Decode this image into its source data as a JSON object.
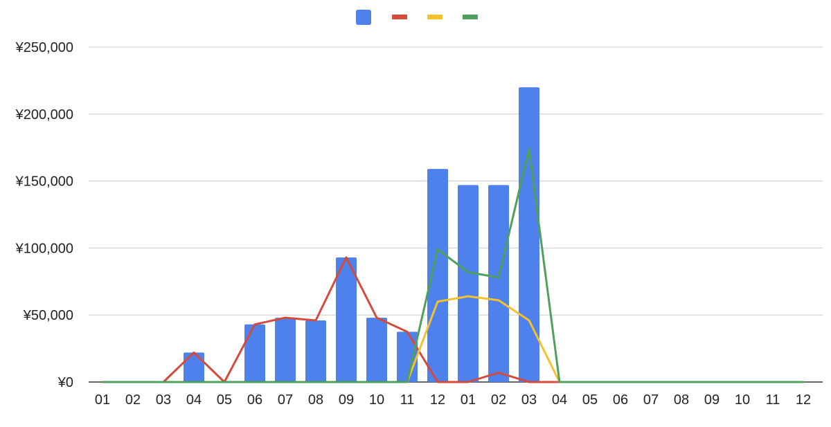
{
  "chart_data": {
    "type": "bar",
    "title": "",
    "xlabel": "",
    "ylabel": "",
    "categories": [
      "01",
      "02",
      "03",
      "04",
      "05",
      "06",
      "07",
      "08",
      "09",
      "10",
      "11",
      "12",
      "01",
      "02",
      "03",
      "04",
      "05",
      "06",
      "07",
      "08",
      "09",
      "10",
      "11",
      "12"
    ],
    "ylim": [
      0,
      250000
    ],
    "yticks": [
      0,
      50000,
      100000,
      150000,
      200000,
      250000
    ],
    "ytick_labels": [
      "¥0",
      "¥50,000",
      "¥100,000",
      "¥150,000",
      "¥200,000",
      "¥250,000"
    ],
    "grid": true,
    "legend_position": "top-center",
    "series": [
      {
        "type": "bar",
        "color": "#4f81ec",
        "values": [
          0,
          0,
          0,
          22000,
          0,
          43000,
          48000,
          46000,
          93000,
          48000,
          37500,
          159000,
          147000,
          147000,
          220000,
          0,
          0,
          0,
          0,
          0,
          0,
          0,
          0,
          0
        ]
      },
      {
        "type": "line",
        "color": "#d34b3d",
        "values": [
          0,
          0,
          0,
          22000,
          0,
          43000,
          48000,
          46000,
          93000,
          48000,
          37500,
          0,
          0,
          7000,
          0,
          0,
          0,
          0,
          0,
          0,
          0,
          0,
          0,
          0
        ]
      },
      {
        "type": "line",
        "color": "#f4c22e",
        "values": [
          0,
          0,
          0,
          0,
          0,
          0,
          0,
          0,
          0,
          0,
          0,
          60000,
          64000,
          61000,
          46000,
          0,
          0,
          0,
          0,
          0,
          0,
          0,
          0,
          0
        ]
      },
      {
        "type": "line",
        "color": "#4ea05c",
        "values": [
          0,
          0,
          0,
          0,
          0,
          0,
          0,
          0,
          0,
          0,
          0,
          99000,
          82000,
          78000,
          174000,
          0,
          0,
          0,
          0,
          0,
          0,
          0,
          0,
          0
        ]
      }
    ]
  }
}
